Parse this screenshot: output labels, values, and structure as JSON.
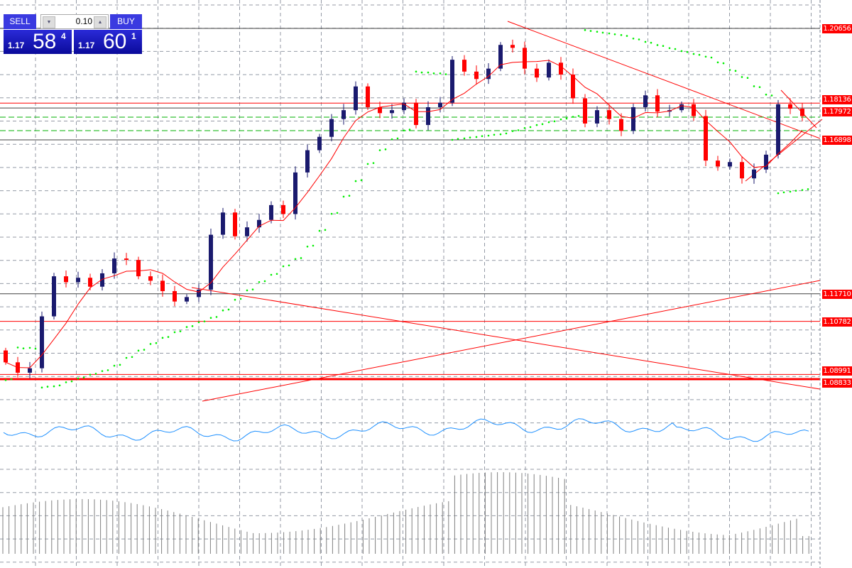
{
  "trade_panel": {
    "sell_label": "SELL",
    "buy_label": "BUY",
    "lot_size": "0.10",
    "sell_price": {
      "prefix": "1.17",
      "big": "58",
      "sup": "4"
    },
    "buy_price": {
      "prefix": "1.17",
      "big": "60",
      "sup": "1"
    }
  },
  "chart_data": {
    "type": "candlestick",
    "title": "",
    "price_scale": {
      "ref_top": 1.20656,
      "ref_bottom": 1.08833
    },
    "closes": [
      1.094,
      1.0905,
      1.092,
      1.1095,
      1.123,
      1.121,
      1.1225,
      1.1195,
      1.124,
      1.129,
      1.1285,
      1.123,
      1.1215,
      1.118,
      1.1145,
      1.116,
      1.1185,
      1.137,
      1.1445,
      1.1365,
      1.1395,
      1.142,
      1.147,
      1.144,
      1.158,
      1.1655,
      1.17,
      1.176,
      1.179,
      1.187,
      1.18,
      1.178,
      1.179,
      1.1815,
      1.174,
      1.18,
      1.1815,
      1.196,
      1.192,
      1.1895,
      1.193,
      1.201,
      1.2,
      1.193,
      1.19,
      1.195,
      1.191,
      1.183,
      1.1745,
      1.179,
      1.176,
      1.172,
      1.18,
      1.184,
      1.1785,
      1.179,
      1.181,
      1.177,
      1.162,
      1.16,
      1.1615,
      1.156,
      1.159,
      1.164,
      1.181,
      1.1795,
      1.177
    ],
    "first_open": 1.098,
    "levels": [
      {
        "price": 1.20656,
        "label": "1.20656",
        "color": "#404040"
      },
      {
        "price": 1.18136,
        "label": "1.18136",
        "color": "#ff0000"
      },
      {
        "price": 1.17972,
        "label": "1.17972",
        "color": "#404040"
      },
      {
        "price": 1.16898,
        "label": "1.16898",
        "color": "#404040"
      },
      {
        "price": 1.1171,
        "label": "1.11710",
        "color": "#404040"
      },
      {
        "price": 1.10782,
        "label": "1.10782",
        "color": "#ff0000"
      },
      {
        "price": 1.08991,
        "label": "1.08991",
        "color": "#ff0000"
      },
      {
        "price": 1.08833,
        "label": "1.08833",
        "color": "#ff0000"
      }
    ],
    "colors": {
      "bull": "#1a1a6e",
      "bear": "#ff0000",
      "ma": "#ff0000",
      "sar": "#00ee00",
      "oscillator": "#1e90ff",
      "volume": "#808080",
      "grid": "#7a8290"
    }
  }
}
